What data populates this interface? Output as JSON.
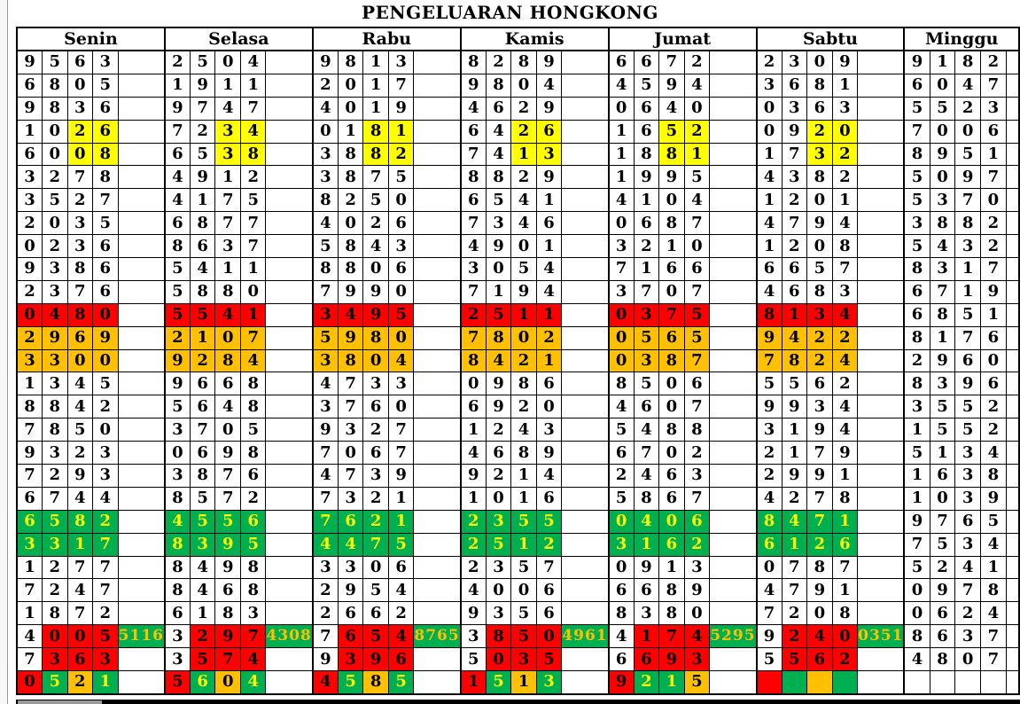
{
  "title": "PENGELUARAN HONGKONG",
  "days": [
    "Senin",
    "Selasa",
    "Rabu",
    "Kamis",
    "Jumat",
    "Sabtu",
    "Minggu"
  ],
  "color_legend": {
    "w": "#FFFFFF",
    "y": "#FFFF00",
    "r": "#FF0000",
    "o": "#FFC000",
    "g": "#00B050"
  },
  "note_style": {
    "bg": "#00B050",
    "text": "#FFC000"
  },
  "green_cell_text": "#FFFF00",
  "rows": [
    [
      [
        "9563"
      ],
      [
        "2504"
      ],
      [
        "9813"
      ],
      [
        "8289"
      ],
      [
        "6672"
      ],
      [
        "2309"
      ],
      [
        "9182"
      ]
    ],
    [
      [
        "6805"
      ],
      [
        "1911"
      ],
      [
        "2017"
      ],
      [
        "9804"
      ],
      [
        "4594"
      ],
      [
        "3681"
      ],
      [
        "6047"
      ]
    ],
    [
      [
        "9836"
      ],
      [
        "9747"
      ],
      [
        "4019"
      ],
      [
        "4629"
      ],
      [
        "0640"
      ],
      [
        "0363"
      ],
      [
        "5523"
      ]
    ],
    [
      [
        "1026",
        "wwyy"
      ],
      [
        "7234",
        "wwyy"
      ],
      [
        "0181",
        "wwyy"
      ],
      [
        "6426",
        "wwyy"
      ],
      [
        "1652",
        "wwyy"
      ],
      [
        "0920",
        "wwyy"
      ],
      [
        "7006"
      ]
    ],
    [
      [
        "6008",
        "wwyy"
      ],
      [
        "6538",
        "wwyy"
      ],
      [
        "3882",
        "wwyy"
      ],
      [
        "7413",
        "wwyy"
      ],
      [
        "1881",
        "wwyy"
      ],
      [
        "1732",
        "wwyy"
      ],
      [
        "8951"
      ]
    ],
    [
      [
        "3278"
      ],
      [
        "4912"
      ],
      [
        "3875"
      ],
      [
        "8829"
      ],
      [
        "1995"
      ],
      [
        "4382"
      ],
      [
        "5097"
      ]
    ],
    [
      [
        "3527"
      ],
      [
        "4175"
      ],
      [
        "8250"
      ],
      [
        "6541"
      ],
      [
        "4104"
      ],
      [
        "1201"
      ],
      [
        "5370"
      ]
    ],
    [
      [
        "2035"
      ],
      [
        "6877"
      ],
      [
        "4026"
      ],
      [
        "7346"
      ],
      [
        "0687"
      ],
      [
        "4794"
      ],
      [
        "3882"
      ]
    ],
    [
      [
        "0236"
      ],
      [
        "8637"
      ],
      [
        "5843"
      ],
      [
        "4901"
      ],
      [
        "3210"
      ],
      [
        "1208"
      ],
      [
        "5432"
      ]
    ],
    [
      [
        "9386"
      ],
      [
        "5411"
      ],
      [
        "8806"
      ],
      [
        "3054"
      ],
      [
        "7166"
      ],
      [
        "6657"
      ],
      [
        "8317"
      ]
    ],
    [
      [
        "2376"
      ],
      [
        "5880"
      ],
      [
        "7990"
      ],
      [
        "7194"
      ],
      [
        "3707"
      ],
      [
        "4683"
      ],
      [
        "6719"
      ]
    ],
    [
      [
        "0480",
        "rrrr"
      ],
      [
        "5541",
        "rrrr"
      ],
      [
        "3495",
        "rrrr"
      ],
      [
        "2511",
        "rrrr"
      ],
      [
        "0375",
        "rrrr"
      ],
      [
        "8134",
        "rrrr"
      ],
      [
        "6851"
      ]
    ],
    [
      [
        "2969",
        "oooo"
      ],
      [
        "2107",
        "oooo"
      ],
      [
        "5980",
        "oooo"
      ],
      [
        "7802",
        "oooo"
      ],
      [
        "0565",
        "oooo"
      ],
      [
        "9422",
        "oooo"
      ],
      [
        "8176"
      ]
    ],
    [
      [
        "3300",
        "oooo"
      ],
      [
        "9284",
        "oooo"
      ],
      [
        "3804",
        "oooo"
      ],
      [
        "8421",
        "oooo"
      ],
      [
        "0387",
        "oooo"
      ],
      [
        "7824",
        "oooo"
      ],
      [
        "2960"
      ]
    ],
    [
      [
        "1345"
      ],
      [
        "9668"
      ],
      [
        "4733"
      ],
      [
        "0986"
      ],
      [
        "8506"
      ],
      [
        "5562"
      ],
      [
        "8396"
      ]
    ],
    [
      [
        "8842"
      ],
      [
        "5648"
      ],
      [
        "3760"
      ],
      [
        "6920"
      ],
      [
        "4607"
      ],
      [
        "9934"
      ],
      [
        "3552"
      ]
    ],
    [
      [
        "7850"
      ],
      [
        "3705"
      ],
      [
        "9327"
      ],
      [
        "1243"
      ],
      [
        "5488"
      ],
      [
        "3194"
      ],
      [
        "1552"
      ]
    ],
    [
      [
        "9323"
      ],
      [
        "0698"
      ],
      [
        "7067"
      ],
      [
        "4689"
      ],
      [
        "6702"
      ],
      [
        "2179"
      ],
      [
        "5134"
      ]
    ],
    [
      [
        "7293"
      ],
      [
        "3876"
      ],
      [
        "4739"
      ],
      [
        "9214"
      ],
      [
        "2463"
      ],
      [
        "2991"
      ],
      [
        "1638"
      ]
    ],
    [
      [
        "6744"
      ],
      [
        "8572"
      ],
      [
        "7321"
      ],
      [
        "1016"
      ],
      [
        "5867"
      ],
      [
        "4278"
      ],
      [
        "1039"
      ]
    ],
    [
      [
        "6582",
        "gggg"
      ],
      [
        "4556",
        "gggg"
      ],
      [
        "7621",
        "gggg"
      ],
      [
        "2355",
        "gggg"
      ],
      [
        "0406",
        "gggg"
      ],
      [
        "8471",
        "gggg"
      ],
      [
        "9765"
      ]
    ],
    [
      [
        "3317",
        "gggg"
      ],
      [
        "8395",
        "gggg"
      ],
      [
        "4475",
        "gggg"
      ],
      [
        "2512",
        "gggg"
      ],
      [
        "3162",
        "gggg"
      ],
      [
        "6126",
        "gggg"
      ],
      [
        "7534"
      ]
    ],
    [
      [
        "1277"
      ],
      [
        "8498"
      ],
      [
        "3306"
      ],
      [
        "2357"
      ],
      [
        "0913"
      ],
      [
        "0787"
      ],
      [
        "5241"
      ]
    ],
    [
      [
        "7247"
      ],
      [
        "8468"
      ],
      [
        "2954"
      ],
      [
        "4006"
      ],
      [
        "6689"
      ],
      [
        "4791"
      ],
      [
        "0978"
      ]
    ],
    [
      [
        "1872"
      ],
      [
        "6183"
      ],
      [
        "2662"
      ],
      [
        "9356"
      ],
      [
        "8380"
      ],
      [
        "7208"
      ],
      [
        "0624"
      ]
    ],
    [
      [
        "4005",
        "wrrr",
        "5116"
      ],
      [
        "3297",
        "wrrr",
        "4308"
      ],
      [
        "7654",
        "wrrr",
        "8765"
      ],
      [
        "3850",
        "wrrr",
        "4961"
      ],
      [
        "4174",
        "wrrr",
        "5295"
      ],
      [
        "9240",
        "wrrr",
        "0351"
      ],
      [
        "8637"
      ]
    ],
    [
      [
        "7363",
        "wrrr"
      ],
      [
        "3574",
        "wrrr"
      ],
      [
        "9396",
        "wrrr"
      ],
      [
        "5035",
        "wrrr"
      ],
      [
        "6693",
        "wrrr"
      ],
      [
        "5562",
        "wrrr"
      ],
      [
        "4807"
      ]
    ],
    [
      [
        "0521",
        "rgog"
      ],
      [
        "5604",
        "rgog"
      ],
      [
        "4585",
        "rgog"
      ],
      [
        "1513",
        "rgog"
      ],
      [
        "9215",
        "rggo"
      ],
      [
        "",
        "rgog"
      ],
      [
        "",
        "wwww"
      ]
    ]
  ]
}
